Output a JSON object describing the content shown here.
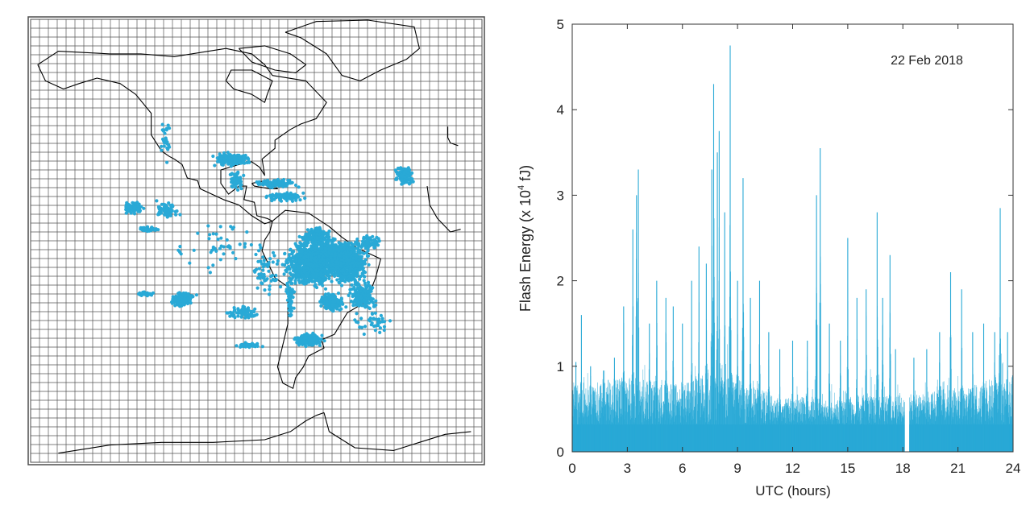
{
  "colors": {
    "accent": "#29a9d6",
    "line": "#000000",
    "grid": "#4d4d4d",
    "background": "#ffffff"
  },
  "map": {
    "description_note": "",
    "land_outline": [
      {
        "name": "north-america",
        "points": [
          [
            -168,
            66
          ],
          [
            -160,
            71
          ],
          [
            -140,
            70
          ],
          [
            -128,
            70
          ],
          [
            -115,
            69
          ],
          [
            -95,
            72
          ],
          [
            -85,
            70
          ],
          [
            -80,
            66
          ],
          [
            -77,
            62
          ],
          [
            -64,
            60
          ],
          [
            -56,
            52
          ],
          [
            -60,
            46
          ],
          [
            -66,
            44
          ],
          [
            -70,
            42
          ],
          [
            -76,
            38
          ],
          [
            -76,
            35
          ],
          [
            -81,
            31
          ],
          [
            -80,
            25
          ],
          [
            -82,
            28
          ],
          [
            -85,
            30
          ],
          [
            -90,
            29
          ],
          [
            -97,
            27
          ],
          [
            -97,
            22
          ],
          [
            -94,
            18
          ],
          [
            -90,
            21
          ],
          [
            -87,
            21
          ],
          [
            -88,
            16
          ],
          [
            -84,
            15
          ],
          [
            -83,
            10
          ],
          [
            -79,
            9
          ],
          [
            -77,
            8
          ],
          [
            -80,
            7
          ],
          [
            -85,
            10
          ],
          [
            -90,
            14
          ],
          [
            -96,
            16
          ],
          [
            -105,
            20
          ],
          [
            -106,
            23
          ],
          [
            -110,
            24
          ],
          [
            -112,
            29
          ],
          [
            -115,
            31
          ],
          [
            -117,
            32
          ],
          [
            -120,
            34
          ],
          [
            -124,
            40
          ],
          [
            -124,
            48
          ],
          [
            -130,
            55
          ],
          [
            -136,
            59
          ],
          [
            -145,
            61
          ],
          [
            -152,
            59
          ],
          [
            -158,
            57
          ],
          [
            -165,
            60
          ],
          [
            -168,
            66
          ]
        ]
      },
      {
        "name": "south-america",
        "points": [
          [
            -77,
            8
          ],
          [
            -72,
            12
          ],
          [
            -63,
            11
          ],
          [
            -55,
            6
          ],
          [
            -50,
            2
          ],
          [
            -44,
            -2
          ],
          [
            -35,
            -6
          ],
          [
            -37,
            -13
          ],
          [
            -39,
            -18
          ],
          [
            -41,
            -22
          ],
          [
            -48,
            -26
          ],
          [
            -53,
            -34
          ],
          [
            -58,
            -36
          ],
          [
            -57,
            -39
          ],
          [
            -63,
            -42
          ],
          [
            -65,
            -46
          ],
          [
            -68,
            -50
          ],
          [
            -69,
            -54
          ],
          [
            -73,
            -52
          ],
          [
            -75,
            -46
          ],
          [
            -73,
            -38
          ],
          [
            -71,
            -30
          ],
          [
            -71,
            -22
          ],
          [
            -70,
            -17
          ],
          [
            -76,
            -13
          ],
          [
            -79,
            -7
          ],
          [
            -81,
            -3
          ],
          [
            -80,
            1
          ],
          [
            -78,
            4
          ],
          [
            -77,
            8
          ]
        ]
      },
      {
        "name": "greenland",
        "points": [
          [
            -72,
            78
          ],
          [
            -60,
            82
          ],
          [
            -40,
            83
          ],
          [
            -22,
            80
          ],
          [
            -20,
            72
          ],
          [
            -25,
            68
          ],
          [
            -35,
            64
          ],
          [
            -43,
            60
          ],
          [
            -50,
            62
          ],
          [
            -53,
            66
          ],
          [
            -56,
            70
          ],
          [
            -66,
            76
          ],
          [
            -72,
            78
          ]
        ]
      },
      {
        "name": "baffin-island",
        "points": [
          [
            -90,
            72
          ],
          [
            -80,
            73
          ],
          [
            -70,
            70
          ],
          [
            -64,
            66
          ],
          [
            -68,
            63
          ],
          [
            -76,
            64
          ],
          [
            -85,
            67
          ],
          [
            -90,
            72
          ]
        ]
      },
      {
        "name": "hudson-bay",
        "points": [
          [
            -95,
            60
          ],
          [
            -92,
            57
          ],
          [
            -85,
            55
          ],
          [
            -80,
            52
          ],
          [
            -79,
            55
          ],
          [
            -77,
            60
          ],
          [
            -85,
            64
          ],
          [
            -93,
            64
          ],
          [
            -95,
            60
          ]
        ]
      },
      {
        "name": "cuba",
        "points": [
          [
            -85,
            22
          ],
          [
            -80,
            23
          ],
          [
            -75,
            20
          ],
          [
            -78,
            20
          ],
          [
            -84,
            21
          ],
          [
            -85,
            22
          ]
        ]
      },
      {
        "name": "africa-west",
        "points": [
          [
            -17,
            21
          ],
          [
            -16,
            14
          ],
          [
            -13,
            9
          ],
          [
            -8,
            4
          ],
          [
            -4,
            5
          ]
        ]
      },
      {
        "name": "europe-west",
        "points": [
          [
            -9,
            43
          ],
          [
            -9,
            39
          ],
          [
            -8,
            37
          ],
          [
            -5,
            36
          ]
        ]
      },
      {
        "name": "antarctic-peninsula",
        "points": [
          [
            -57,
            -63
          ],
          [
            -60,
            -64
          ],
          [
            -64,
            -66
          ],
          [
            -67,
            -68
          ],
          [
            -70,
            -70
          ],
          [
            -80,
            -73
          ],
          [
            -100,
            -74
          ],
          [
            -120,
            -74
          ],
          [
            -140,
            -75
          ],
          [
            -160,
            -78
          ],
          [
            -180,
            -78
          ]
        ]
      },
      {
        "name": "antarctica-weddell",
        "points": [
          [
            -57,
            -63
          ],
          [
            -55,
            -70
          ],
          [
            -45,
            -76
          ],
          [
            -30,
            -77
          ],
          [
            -20,
            -74
          ],
          [
            -10,
            -71
          ],
          [
            0,
            -70
          ]
        ]
      }
    ],
    "flash_clusters": [
      {
        "lon": -62,
        "lat": -8,
        "rlon": 12,
        "rlat": 10,
        "n": 950
      },
      {
        "lon": -48,
        "lat": -8,
        "rlon": 10,
        "rlat": 9,
        "n": 700
      },
      {
        "lon": -53,
        "lat": -3,
        "rlon": 10,
        "rlat": 5,
        "n": 250
      },
      {
        "lon": -60,
        "lat": 2,
        "rlon": 8,
        "rlat": 5,
        "n": 180
      },
      {
        "lon": -42,
        "lat": -20,
        "rlon": 6,
        "rlat": 6,
        "n": 220
      },
      {
        "lon": -54,
        "lat": -22,
        "rlon": 6,
        "rlat": 5,
        "n": 160
      },
      {
        "lon": -40,
        "lat": 0,
        "rlon": 6,
        "rlat": 3,
        "n": 80
      },
      {
        "lon": -63,
        "lat": -36,
        "rlon": 7,
        "rlat": 3,
        "n": 170
      },
      {
        "lon": -70,
        "lat": -20,
        "rlon": 2,
        "rlat": 10,
        "n": 70
      },
      {
        "lon": -93,
        "lat": 31,
        "rlon": 8,
        "rlat": 3,
        "n": 220
      },
      {
        "lon": -91,
        "lat": 23,
        "rlon": 3,
        "rlat": 4,
        "n": 60
      },
      {
        "lon": -76,
        "lat": 22,
        "rlon": 10,
        "rlat": 2,
        "n": 110
      },
      {
        "lon": -72,
        "lat": 17,
        "rlon": 10,
        "rlat": 2,
        "n": 90
      },
      {
        "lon": -26,
        "lat": 25,
        "rlon": 4,
        "rlat": 4,
        "n": 160
      },
      {
        "lon": -131,
        "lat": 13,
        "rlon": 5,
        "rlat": 3,
        "n": 70
      },
      {
        "lon": -118,
        "lat": 12,
        "rlon": 6,
        "rlat": 4,
        "n": 70
      },
      {
        "lon": -125,
        "lat": 5,
        "rlon": 5,
        "rlat": 1,
        "n": 50
      },
      {
        "lon": -112,
        "lat": -21,
        "rlon": 6,
        "rlat": 3,
        "n": 150
      },
      {
        "lon": -126,
        "lat": -19,
        "rlon": 4,
        "rlat": 1,
        "n": 30
      },
      {
        "lon": -88,
        "lat": -26,
        "rlon": 8,
        "rlat": 3,
        "n": 70
      },
      {
        "lon": -86,
        "lat": -38,
        "rlon": 6,
        "rlat": 1,
        "n": 50
      },
      {
        "lon": -80,
        "lat": -10,
        "rlon": 8,
        "rlat": 12,
        "n": 60
      },
      {
        "lon": -100,
        "lat": 0,
        "rlon": 18,
        "rlat": 14,
        "n": 45
      },
      {
        "lon": -38,
        "lat": -30,
        "rlon": 10,
        "rlat": 6,
        "n": 40
      },
      {
        "lon": -118,
        "lat": 38,
        "rlon": 3,
        "rlat": 12,
        "n": 25
      }
    ]
  },
  "chart_data": {
    "type": "bar",
    "title": "",
    "annotation": "22 Feb 2018",
    "xlabel": "UTC (hours)",
    "ylabel": "Flash  Energy  (x 10",
    "ylabel_exp": "4",
    "ylabel_unit": " fJ)",
    "xlim": [
      0,
      24
    ],
    "ylim": [
      0,
      5
    ],
    "xticks": [
      0,
      3,
      6,
      9,
      12,
      15,
      18,
      21,
      24
    ],
    "yticks": [
      0,
      1,
      2,
      3,
      4,
      5
    ],
    "data_gap": [
      18.1,
      18.35
    ],
    "baseline_level": 0.32,
    "baseline_band": [
      [
        0,
        0.8
      ],
      [
        1,
        0.72
      ],
      [
        2,
        0.78
      ],
      [
        3,
        0.82
      ],
      [
        4,
        0.78
      ],
      [
        5,
        0.75
      ],
      [
        6,
        0.72
      ],
      [
        7,
        0.85
      ],
      [
        8,
        0.95
      ],
      [
        9,
        0.8
      ],
      [
        10,
        0.7
      ],
      [
        11,
        0.62
      ],
      [
        12,
        0.58
      ],
      [
        13,
        0.62
      ],
      [
        14,
        0.55
      ],
      [
        15,
        0.58
      ],
      [
        16,
        0.62
      ],
      [
        17,
        0.6
      ],
      [
        18,
        0.65
      ],
      [
        19,
        0.62
      ],
      [
        20,
        0.72
      ],
      [
        21,
        0.68
      ],
      [
        22,
        0.72
      ],
      [
        23,
        0.82
      ],
      [
        24,
        0.85
      ]
    ],
    "peaks": [
      [
        0.2,
        1.05
      ],
      [
        0.5,
        1.6
      ],
      [
        1.0,
        1.0
      ],
      [
        1.7,
        0.95
      ],
      [
        2.3,
        1.1
      ],
      [
        2.8,
        1.7
      ],
      [
        3.3,
        2.6
      ],
      [
        3.5,
        3.0
      ],
      [
        3.6,
        3.3
      ],
      [
        4.2,
        1.5
      ],
      [
        4.6,
        2.0
      ],
      [
        5.1,
        1.8
      ],
      [
        5.5,
        1.7
      ],
      [
        6.0,
        1.5
      ],
      [
        6.5,
        2.0
      ],
      [
        6.9,
        2.4
      ],
      [
        7.3,
        2.2
      ],
      [
        7.6,
        3.3
      ],
      [
        7.7,
        4.3
      ],
      [
        7.9,
        3.5
      ],
      [
        8.0,
        3.75
      ],
      [
        8.3,
        2.8
      ],
      [
        8.6,
        4.75
      ],
      [
        9.0,
        2.0
      ],
      [
        9.3,
        3.2
      ],
      [
        9.7,
        1.8
      ],
      [
        10.2,
        2.0
      ],
      [
        10.7,
        1.4
      ],
      [
        11.3,
        1.2
      ],
      [
        12.0,
        1.3
      ],
      [
        12.8,
        1.3
      ],
      [
        13.3,
        3.0
      ],
      [
        13.5,
        3.55
      ],
      [
        14.0,
        1.5
      ],
      [
        14.6,
        1.3
      ],
      [
        15.0,
        2.5
      ],
      [
        15.5,
        1.8
      ],
      [
        16.0,
        1.9
      ],
      [
        16.6,
        2.8
      ],
      [
        16.9,
        1.8
      ],
      [
        17.3,
        2.3
      ],
      [
        17.6,
        1.2
      ],
      [
        18.6,
        1.1
      ],
      [
        19.3,
        1.2
      ],
      [
        20.0,
        1.4
      ],
      [
        20.6,
        2.1
      ],
      [
        21.2,
        1.9
      ],
      [
        21.8,
        1.4
      ],
      [
        22.4,
        1.5
      ],
      [
        23.0,
        1.4
      ],
      [
        23.3,
        2.85
      ],
      [
        23.7,
        1.4
      ]
    ]
  }
}
